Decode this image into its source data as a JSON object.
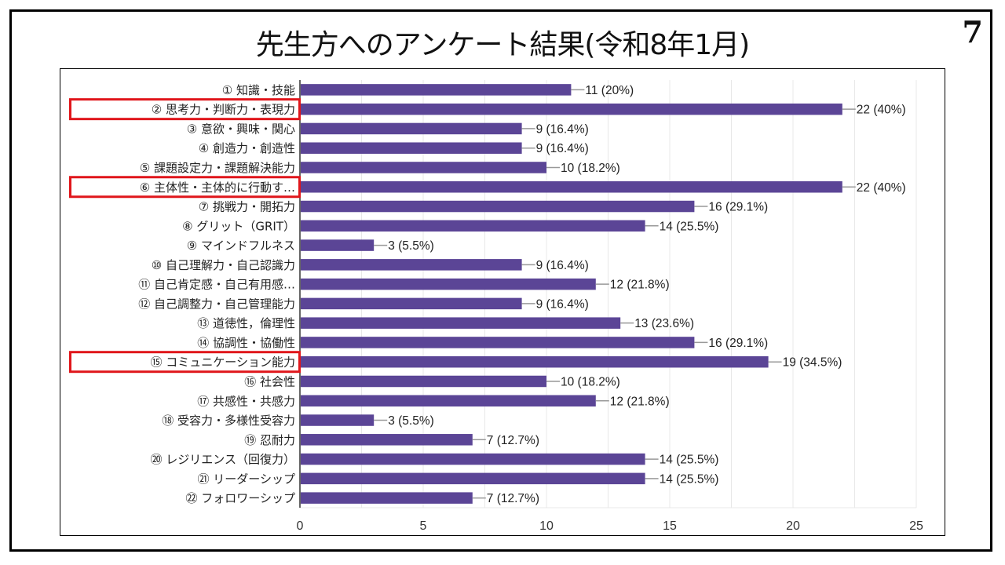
{
  "slide": {
    "title": "先生方へのアンケート結果(令和8年1月)",
    "page_number": "7"
  },
  "colors": {
    "bar": "#5b4596",
    "highlight": "#e0161b",
    "grid": "#e8e8e8",
    "leader": "#999999"
  },
  "chart_data": {
    "type": "bar",
    "orientation": "horizontal",
    "title": "",
    "xlabel": "",
    "ylabel": "",
    "xlim": [
      0,
      25
    ],
    "x_ticks": [
      0,
      5,
      10,
      15,
      20,
      25
    ],
    "grid": true,
    "legend": "none",
    "categories": [
      "① 知識・技能",
      "② 思考力・判断力・表現力",
      "③ 意欲・興味・関心",
      "④ 創造力・創造性",
      "⑤ 課題設定力・課題解決能力",
      "⑥ 主体性・主体的に行動す…",
      "⑦ 挑戦力・開拓力",
      "⑧ グリット（GRIT）",
      "⑨ マインドフルネス",
      "⑩ 自己理解力・自己認識力",
      "⑪ 自己肯定感・自己有用感…",
      "⑫ 自己調整力・自己管理能力",
      "⑬ 道徳性，倫理性",
      "⑭ 協調性・協働性",
      "⑮ コミュニケーション能力",
      "⑯ 社会性",
      "⑰ 共感性・共感力",
      "⑱ 受容力・多様性受容力",
      "⑲ 忍耐力",
      "⑳ レジリエンス（回復力）",
      "㉑ リーダーシップ",
      "㉒ フォロワーシップ"
    ],
    "values": [
      11,
      22,
      9,
      9,
      10,
      22,
      16,
      14,
      3,
      9,
      12,
      9,
      13,
      16,
      19,
      10,
      12,
      3,
      7,
      14,
      14,
      7
    ],
    "value_labels": [
      "11 (20%)",
      "22 (40%)",
      "9 (16.4%)",
      "9 (16.4%)",
      "10 (18.2%)",
      "22 (40%)",
      "16 (29.1%)",
      "14 (25.5%)",
      "3 (5.5%)",
      "9 (16.4%)",
      "12 (21.8%)",
      "9 (16.4%)",
      "13 (23.6%)",
      "16 (29.1%)",
      "19 (34.5%)",
      "10 (18.2%)",
      "12 (21.8%)",
      "3 (5.5%)",
      "7 (12.7%)",
      "14 (25.5%)",
      "14 (25.5%)",
      "7 (12.7%)"
    ],
    "highlighted_categories": [
      1,
      5,
      14
    ]
  }
}
